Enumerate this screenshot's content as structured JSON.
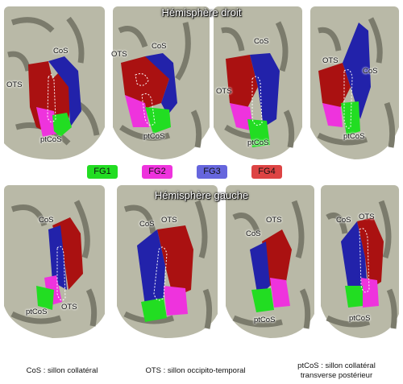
{
  "titles": {
    "right": "Hémisphère droit",
    "left": "Hémisphère gauche"
  },
  "sulci": {
    "cos": "CoS",
    "ots": "OTS",
    "ptcos": "ptCoS"
  },
  "legend": [
    {
      "label": "FG1",
      "color": "#22dd22"
    },
    {
      "label": "FG2",
      "color": "#ee33dd"
    },
    {
      "label": "FG3",
      "color": "#2222aa"
    },
    {
      "label": "FG4",
      "color": "#aa1111"
    }
  ],
  "captions": {
    "cos": "CoS : sillon collatéral",
    "ots": "OTS : sillon occipito-temporal",
    "ptcos_line1": "ptCoS : sillon collatéral",
    "ptcos_line2": "transverse postérieur"
  }
}
